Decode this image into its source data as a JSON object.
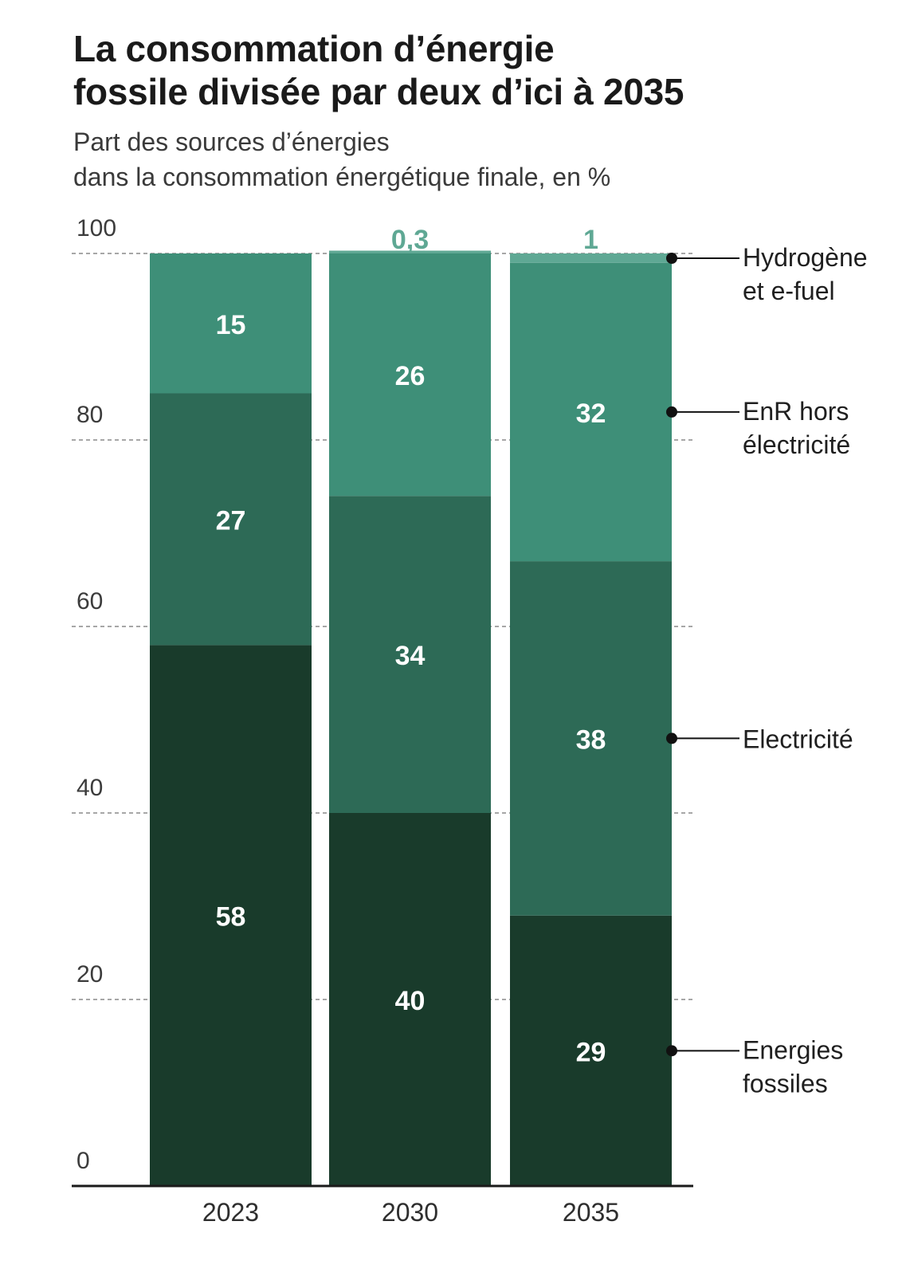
{
  "title_line1": "La consommation d’énergie",
  "title_line2": "fossile divisée par deux d’ici à 2035",
  "subtitle_line1": "Part des sources d’énergies",
  "subtitle_line2": "dans la consommation énergétique finale, en %",
  "chart_data": {
    "type": "bar",
    "stacked": true,
    "categories": [
      "2023",
      "2030",
      "2035"
    ],
    "series": [
      {
        "name": "Energies fossiles",
        "values": [
          58,
          40,
          29
        ],
        "labels": [
          "58",
          "40",
          "29"
        ],
        "color": "#193b2b"
      },
      {
        "name": "Electricité",
        "values": [
          27,
          34,
          38
        ],
        "labels": [
          "27",
          "34",
          "38"
        ],
        "color": "#2d6a56"
      },
      {
        "name": "EnR hors électricité",
        "values": [
          15,
          26,
          32
        ],
        "labels": [
          "15",
          "26",
          "32"
        ],
        "color": "#3e8f78"
      },
      {
        "name": "Hydrogène et e-fuel",
        "values": [
          0,
          0.3,
          1
        ],
        "labels": [
          "",
          "0,3",
          "1"
        ],
        "color": "#5fa894"
      }
    ],
    "legend": [
      {
        "lines": [
          "Hydrogène",
          "et e-fuel"
        ]
      },
      {
        "lines": [
          "EnR hors",
          "électricité"
        ]
      },
      {
        "lines": [
          "Electricité"
        ]
      },
      {
        "lines": [
          "Energies",
          "fossiles"
        ]
      }
    ],
    "y_ticks": [
      "0",
      "20",
      "40",
      "60",
      "80",
      "100"
    ],
    "ylim": [
      0,
      100
    ],
    "grid": true,
    "legend_position": "right"
  }
}
